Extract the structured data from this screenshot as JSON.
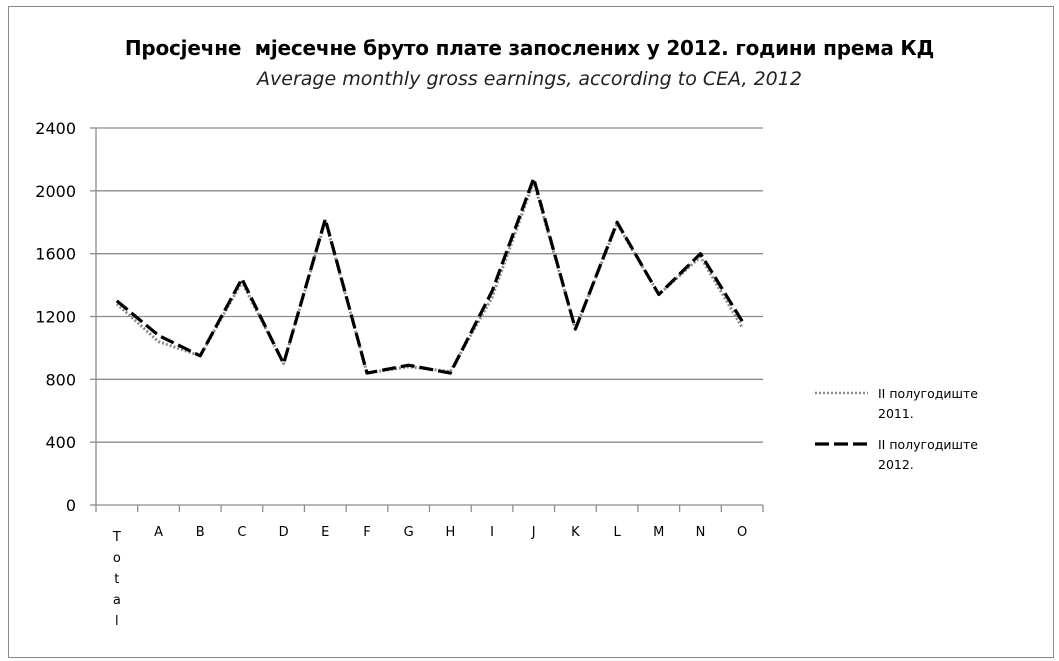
{
  "chart_data": {
    "type": "line",
    "title": "Просјечне  мјесечне бруто плате запослених у 2012. години према КД",
    "subtitle": "Average monthly gross earnings, according to CEA, 2012",
    "categories": [
      "Total",
      "A",
      "B",
      "C",
      "D",
      "E",
      "F",
      "G",
      "H",
      "I",
      "J",
      "K",
      "L",
      "M",
      "N",
      "O"
    ],
    "ylim": [
      0,
      2400
    ],
    "yticks": [
      0,
      400,
      800,
      1200,
      1600,
      2000,
      2400
    ],
    "grid": true,
    "legend_position": "right",
    "series": [
      {
        "name_lines": [
          "II полугодиште",
          "2011."
        ],
        "style": "dotted",
        "color": "#8c8c8c",
        "values": [
          1280,
          1040,
          950,
          1420,
          900,
          1810,
          840,
          880,
          850,
          1320,
          2060,
          1120,
          1790,
          1340,
          1580,
          1130
        ]
      },
      {
        "name_lines": [
          "II полугодиште",
          "2012."
        ],
        "style": "dashed",
        "color": "#000000",
        "values": [
          1300,
          1080,
          950,
          1440,
          900,
          1820,
          840,
          890,
          840,
          1360,
          2080,
          1120,
          1800,
          1340,
          1600,
          1170
        ]
      }
    ]
  }
}
